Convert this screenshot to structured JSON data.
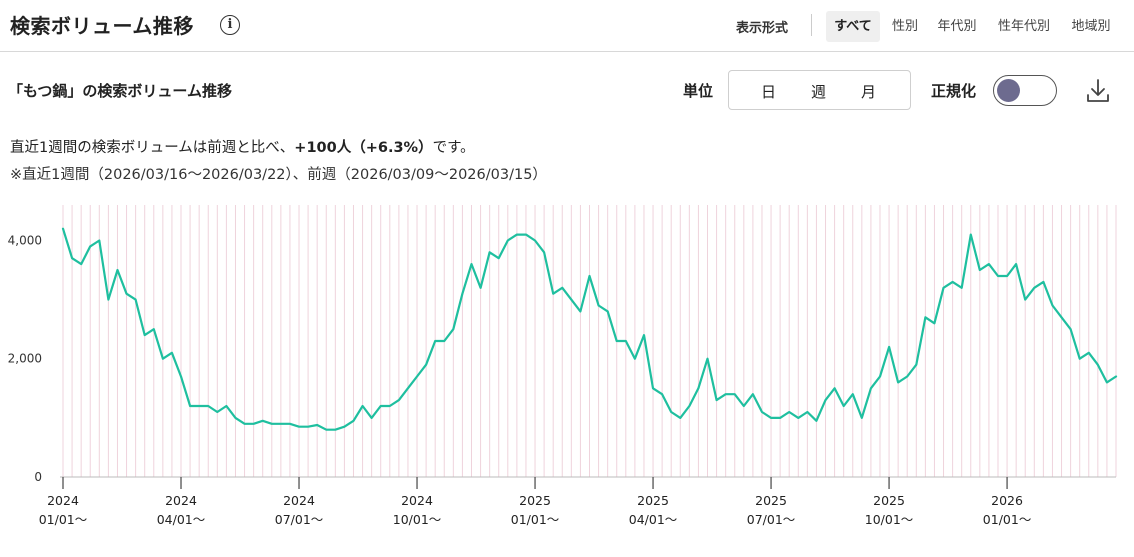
{
  "header": {
    "title": "検索ボリューム推移",
    "info_icon": "info-icon",
    "display_label": "表示形式",
    "tabs": [
      {
        "label": "すべて",
        "active": true
      },
      {
        "label": "性別",
        "active": false
      },
      {
        "label": "年代別",
        "active": false
      },
      {
        "label": "性年代別",
        "active": false
      },
      {
        "label": "地域別",
        "active": false
      }
    ]
  },
  "controls": {
    "subtitle": "「もつ鍋」の検索ボリューム推移",
    "unit_label": "単位",
    "units": [
      "日",
      "週",
      "月"
    ],
    "normalize_label": "正規化",
    "normalize_on": false,
    "download_icon": "download-icon"
  },
  "summary": {
    "prefix": "直近1週間の検索ボリュームは前週と比べ、",
    "highlight": "+100人（+6.3%）",
    "suffix": "です。",
    "note": "※直近1週間（2026/03/16〜2026/03/22）、前週（2026/03/09〜2026/03/15）"
  },
  "colors": {
    "line": "#1fbf9f",
    "grid": "#efd3dc",
    "axis": "#bbbbbb"
  },
  "chart_data": {
    "type": "line",
    "xlabel": "",
    "ylabel": "",
    "ylim": [
      0,
      4600
    ],
    "yticks": [
      {
        "value": 0,
        "label": "0"
      },
      {
        "value": 2000,
        "label": "2,000"
      },
      {
        "value": 4000,
        "label": "4,000"
      }
    ],
    "xticks": [
      {
        "week": 0,
        "year": "2024",
        "date": "01/01〜"
      },
      {
        "week": 13,
        "year": "2024",
        "date": "04/01〜"
      },
      {
        "week": 26,
        "year": "2024",
        "date": "07/01〜"
      },
      {
        "week": 39,
        "year": "2024",
        "date": "10/01〜"
      },
      {
        "week": 52,
        "year": "2025",
        "date": "01/01〜"
      },
      {
        "week": 65,
        "year": "2025",
        "date": "04/01〜"
      },
      {
        "week": 78,
        "year": "2025",
        "date": "07/01〜"
      },
      {
        "week": 91,
        "year": "2025",
        "date": "10/01〜"
      },
      {
        "week": 104,
        "year": "2026",
        "date": "01/01〜"
      }
    ],
    "series": [
      {
        "values": [
          4200,
          3700,
          3600,
          3900,
          4000,
          3000,
          3500,
          3100,
          3000,
          2400,
          2500,
          2000,
          2100,
          1700,
          1200,
          1200,
          1200,
          1100,
          1200,
          1000,
          900,
          900,
          950,
          900,
          900,
          900,
          850,
          850,
          880,
          800,
          800,
          850,
          950,
          1200,
          1000,
          1200,
          1200,
          1300,
          1500,
          1700,
          1900,
          2300,
          2300,
          2500,
          3100,
          3600,
          3200,
          3800,
          3700,
          4000,
          4100,
          4100,
          4000,
          3800,
          3100,
          3200,
          3000,
          2800,
          3400,
          2900,
          2800,
          2300,
          2300,
          2000,
          2400,
          1500,
          1400,
          1100,
          1000,
          1200,
          1500,
          2000,
          1300,
          1400,
          1400,
          1200,
          1400,
          1100,
          1000,
          1000,
          1100,
          1000,
          1100,
          950,
          1300,
          1500,
          1200,
          1400,
          1000,
          1500,
          1700,
          2200,
          1600,
          1700,
          1900,
          2700,
          2600,
          3200,
          3300,
          3200,
          4100,
          3500,
          3600,
          3400,
          3400,
          3600,
          3000,
          3200,
          3300,
          2900,
          2700,
          2500,
          2000,
          2100,
          1900,
          1600,
          1700
        ]
      }
    ]
  }
}
